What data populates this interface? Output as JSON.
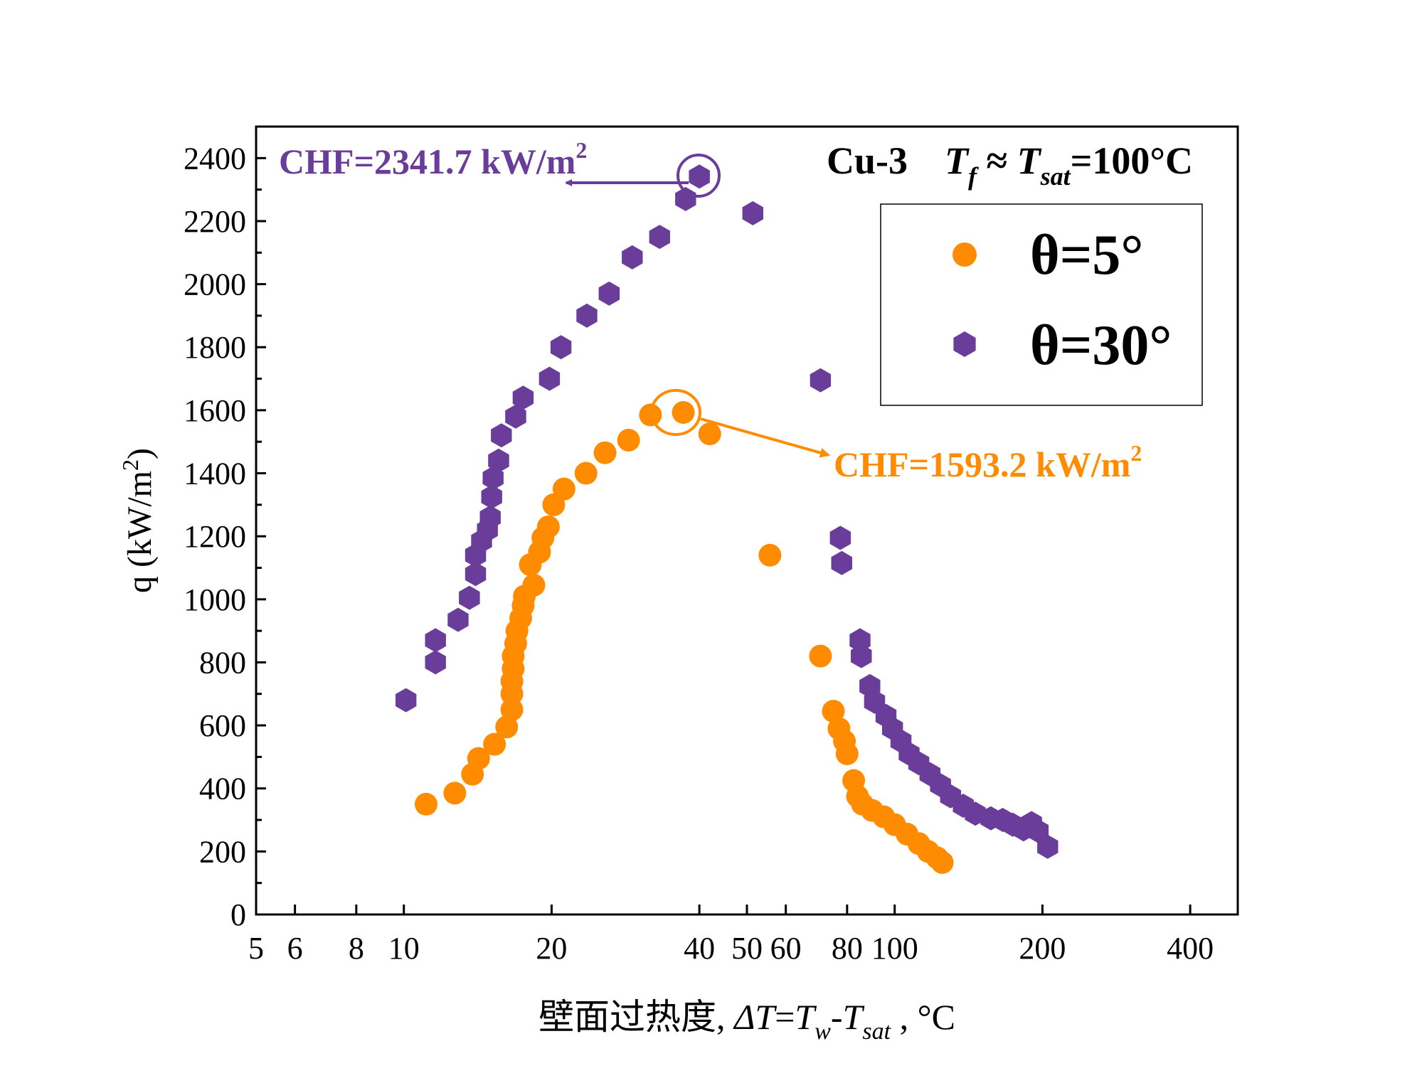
{
  "colors": {
    "orange": "#ff8c00",
    "purple": "#6a3d9a",
    "axis": "#000000"
  },
  "chart_data": {
    "type": "scatter",
    "title": "Cu-3",
    "condition": {
      "prefix": "T",
      "sub1": "f",
      "approx": " ≈ ",
      "sub2": "sat",
      "suffix": "=100°C"
    },
    "xlabel": {
      "prefix": "壁面过热度, ",
      "delta": "ΔT",
      "eq": "=",
      "t": "T",
      "w": "w",
      "dash": "-",
      "sat": "sat",
      "unit": " , °C"
    },
    "ylabel": {
      "text": "q (kW/m",
      "sup": "2",
      "close": ")"
    },
    "xscale": "log",
    "xlim": [
      5,
      500
    ],
    "ylim": [
      0,
      2500
    ],
    "xticks": [
      5,
      6,
      8,
      10,
      20,
      40,
      50,
      60,
      80,
      100,
      200,
      400
    ],
    "yticks": [
      0,
      200,
      400,
      600,
      800,
      1000,
      1200,
      1400,
      1600,
      1800,
      2000,
      2200,
      2400
    ],
    "legend_position": "top-right",
    "series": [
      {
        "name": "θ=5°",
        "marker": "circle",
        "color": "#ff8c00",
        "points": [
          [
            11.1,
            350
          ],
          [
            12.7,
            385
          ],
          [
            13.8,
            445
          ],
          [
            14.2,
            495
          ],
          [
            15.3,
            540
          ],
          [
            16.2,
            595
          ],
          [
            16.6,
            650
          ],
          [
            16.6,
            700
          ],
          [
            16.6,
            740
          ],
          [
            16.7,
            780
          ],
          [
            16.7,
            820
          ],
          [
            16.9,
            860
          ],
          [
            17.0,
            900
          ],
          [
            17.3,
            940
          ],
          [
            17.5,
            980
          ],
          [
            17.6,
            1010
          ],
          [
            18.4,
            1045
          ],
          [
            18.1,
            1110
          ],
          [
            18.9,
            1150
          ],
          [
            19.2,
            1195
          ],
          [
            19.7,
            1230
          ],
          [
            20.2,
            1300
          ],
          [
            21.2,
            1350
          ],
          [
            23.5,
            1400
          ],
          [
            25.7,
            1465
          ],
          [
            28.7,
            1505
          ],
          [
            31.8,
            1585
          ],
          [
            37.1,
            1593
          ],
          [
            42.0,
            1525
          ],
          [
            55.7,
            1140
          ],
          [
            70.6,
            820
          ],
          [
            75.0,
            645
          ],
          [
            77.0,
            590
          ],
          [
            79.0,
            550
          ],
          [
            80.0,
            510
          ],
          [
            82.5,
            425
          ],
          [
            84.0,
            375
          ],
          [
            86.0,
            350
          ],
          [
            90.0,
            330
          ],
          [
            95.0,
            310
          ],
          [
            100.0,
            285
          ],
          [
            106.0,
            255
          ],
          [
            112.0,
            225
          ],
          [
            117.0,
            200
          ],
          [
            122.0,
            180
          ],
          [
            125.0,
            165
          ]
        ]
      },
      {
        "name": "θ=30°",
        "marker": "hexagon",
        "color": "#6a3d9a",
        "points": [
          [
            10.1,
            680
          ],
          [
            11.6,
            800
          ],
          [
            11.6,
            870
          ],
          [
            12.9,
            935
          ],
          [
            13.6,
            1005
          ],
          [
            14.0,
            1080
          ],
          [
            14.0,
            1140
          ],
          [
            14.4,
            1185
          ],
          [
            14.8,
            1220
          ],
          [
            15.0,
            1260
          ],
          [
            15.1,
            1325
          ],
          [
            15.2,
            1385
          ],
          [
            15.6,
            1440
          ],
          [
            15.8,
            1520
          ],
          [
            16.9,
            1580
          ],
          [
            17.5,
            1640
          ],
          [
            19.8,
            1700
          ],
          [
            20.9,
            1800
          ],
          [
            23.6,
            1900
          ],
          [
            26.2,
            1970
          ],
          [
            29.2,
            2085
          ],
          [
            33.2,
            2150
          ],
          [
            37.5,
            2270
          ],
          [
            40.0,
            2341.7
          ],
          [
            51.4,
            2225
          ],
          [
            70.6,
            1695
          ],
          [
            77.5,
            1195
          ],
          [
            78.0,
            1115
          ],
          [
            85.0,
            870
          ],
          [
            85.5,
            820
          ],
          [
            89.0,
            725
          ],
          [
            91.0,
            675
          ],
          [
            96.0,
            630
          ],
          [
            99.0,
            590
          ],
          [
            103.0,
            550
          ],
          [
            107.0,
            510
          ],
          [
            112.0,
            480
          ],
          [
            118.0,
            445
          ],
          [
            124.0,
            410
          ],
          [
            130.0,
            375
          ],
          [
            138.0,
            345
          ],
          [
            146.0,
            320
          ],
          [
            157.0,
            305
          ],
          [
            166.0,
            300
          ],
          [
            174.0,
            285
          ],
          [
            183.0,
            270
          ],
          [
            190.0,
            290
          ],
          [
            196.0,
            265
          ],
          [
            205.0,
            215
          ]
        ]
      }
    ],
    "annotations": [
      {
        "text": "CHF=2341.7 kW/m",
        "sup": "2",
        "color": "#6a3d9a",
        "target": [
          40.0,
          2341.7
        ]
      },
      {
        "text": "CHF=1593.2 kW/m",
        "sup": "2",
        "color": "#ff8c00",
        "target": [
          37.1,
          1593.2
        ]
      }
    ]
  }
}
